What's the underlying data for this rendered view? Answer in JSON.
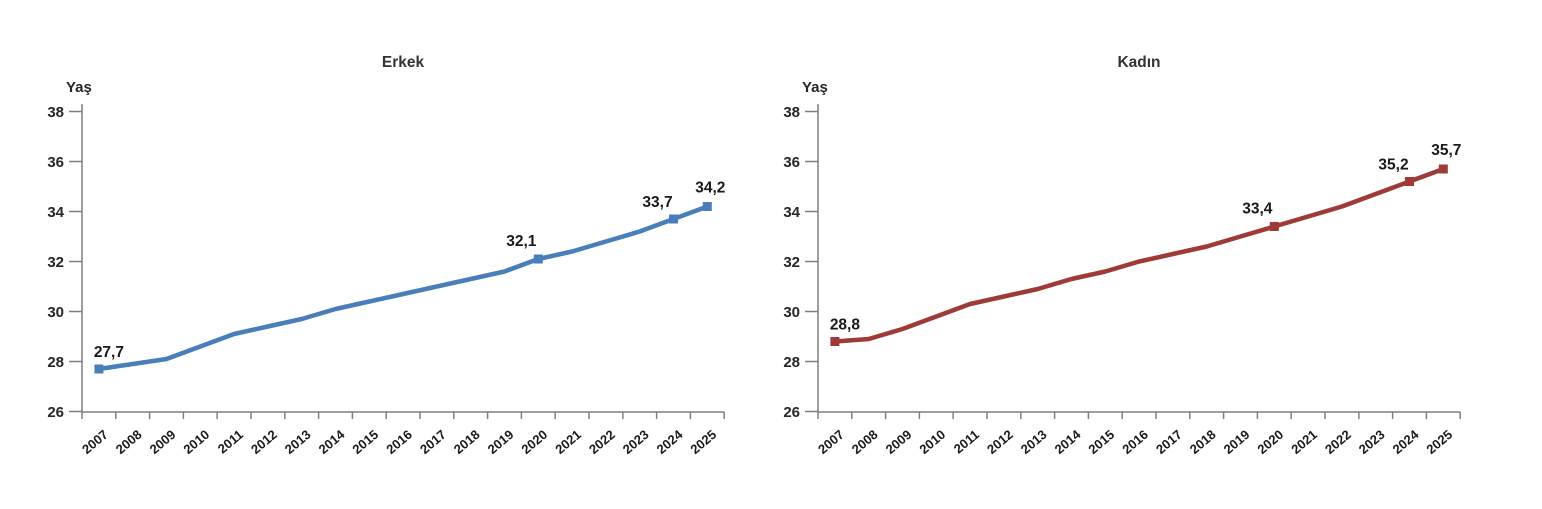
{
  "page": {
    "background": "#ffffff"
  },
  "shared_axis": {
    "ylabel": "Yaş",
    "ylim": [
      26,
      38
    ],
    "yticks": [
      26,
      28,
      30,
      32,
      34,
      36,
      38
    ],
    "axis_color": "#7f7f7f",
    "tick_text_color": "#262626",
    "title_color": "#333333",
    "data_label_color": "#1a1a1a",
    "grid": false,
    "legend": "none"
  },
  "chart_data": [
    {
      "type": "line",
      "title": "Erkek",
      "ylabel": "Yaş",
      "line_color": "#4A7EBB",
      "marker": "square",
      "x": [
        "2007",
        "2008",
        "2009",
        "2010",
        "2011",
        "2012",
        "2013",
        "2014",
        "2015",
        "2016",
        "2017",
        "2018",
        "2019",
        "2020",
        "2021",
        "2022",
        "2023",
        "2024",
        "2025"
      ],
      "values": [
        27.7,
        27.9,
        28.1,
        28.6,
        29.1,
        29.4,
        29.7,
        30.1,
        30.4,
        30.7,
        31.0,
        31.3,
        31.6,
        32.1,
        32.4,
        32.8,
        33.2,
        33.7,
        34.2
      ],
      "ylim": [
        26,
        38
      ],
      "yticks": [
        26,
        28,
        30,
        32,
        34,
        36,
        38
      ],
      "grid": false,
      "labeled_points": [
        {
          "year": "2007",
          "value": 27.7,
          "label": "27,7"
        },
        {
          "year": "2020",
          "value": 32.1,
          "label": "32,1"
        },
        {
          "year": "2024",
          "value": 33.7,
          "label": "33,7"
        },
        {
          "year": "2025",
          "value": 34.2,
          "label": "34,2"
        }
      ]
    },
    {
      "type": "line",
      "title": "Kadın",
      "ylabel": "Yaş",
      "line_color": "#9E3B38",
      "marker": "square",
      "x": [
        "2007",
        "2008",
        "2009",
        "2010",
        "2011",
        "2012",
        "2013",
        "2014",
        "2015",
        "2016",
        "2017",
        "2018",
        "2019",
        "2020",
        "2021",
        "2022",
        "2023",
        "2024",
        "2025"
      ],
      "values": [
        28.8,
        28.9,
        29.3,
        29.8,
        30.3,
        30.6,
        30.9,
        31.3,
        31.6,
        32.0,
        32.3,
        32.6,
        33.0,
        33.4,
        33.8,
        34.2,
        34.7,
        35.2,
        35.7
      ],
      "ylim": [
        26,
        38
      ],
      "yticks": [
        26,
        28,
        30,
        32,
        34,
        36,
        38
      ],
      "grid": false,
      "labeled_points": [
        {
          "year": "2007",
          "value": 28.8,
          "label": "28,8"
        },
        {
          "year": "2020",
          "value": 33.4,
          "label": "33,4"
        },
        {
          "year": "2024",
          "value": 35.2,
          "label": "35,2"
        },
        {
          "year": "2025",
          "value": 35.7,
          "label": "35,7"
        }
      ]
    }
  ]
}
